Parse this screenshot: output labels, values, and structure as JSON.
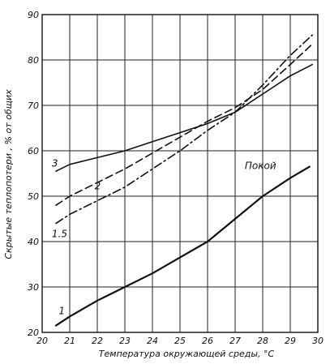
{
  "chart_data": {
    "type": "line",
    "title": "",
    "xlabel": "Температура окружающей среды, °C",
    "ylabel": "Скрытые теплопотери , % от общих",
    "xlim": [
      20,
      30
    ],
    "ylim": [
      20,
      90
    ],
    "xticks": [
      "20",
      "21",
      "22",
      "23",
      "24",
      "25",
      "26",
      "27",
      "28",
      "29",
      "30"
    ],
    "yticks": [
      "20",
      "30",
      "40",
      "50",
      "60",
      "70",
      "80",
      "90"
    ],
    "grid": true,
    "series": [
      {
        "name": "Покой",
        "label_number": "1",
        "style": "solid",
        "x": [
          20.5,
          21,
          22,
          23,
          24,
          25,
          26,
          27,
          28,
          29,
          29.7
        ],
        "y": [
          21.5,
          23.5,
          27,
          30,
          33,
          36.5,
          40,
          45,
          50,
          54,
          56.5
        ]
      },
      {
        "name": "1.5",
        "style": "dash-dot",
        "x": [
          20.5,
          21,
          22,
          23,
          24,
          25,
          26,
          27,
          28,
          29,
          29.8
        ],
        "y": [
          44,
          46,
          49,
          52,
          56,
          60,
          64.5,
          68.5,
          74.5,
          81,
          85.5
        ]
      },
      {
        "name": "2",
        "style": "dashed",
        "x": [
          20.5,
          21,
          22,
          23,
          24,
          25,
          26,
          27,
          28,
          29,
          29.8
        ],
        "y": [
          48,
          50,
          53,
          56,
          59.5,
          63,
          66.5,
          69.5,
          73.5,
          79,
          83.5
        ]
      },
      {
        "name": "3",
        "style": "solid",
        "x": [
          20.5,
          21,
          22,
          23,
          24,
          25,
          26,
          27,
          28,
          29,
          29.8
        ],
        "y": [
          55.5,
          57,
          58.5,
          60,
          62,
          64,
          66,
          68.5,
          72.5,
          76.5,
          79
        ]
      }
    ]
  }
}
